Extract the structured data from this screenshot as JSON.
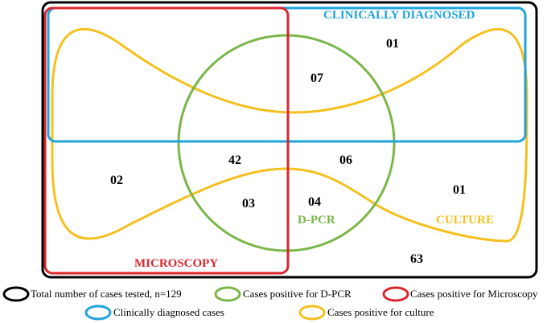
{
  "labels": {
    "clinically_diagnosed": "CLINICALLY DIAGNOSED",
    "dpcr": "D-PCR",
    "microscopy": "MICROSCOPY",
    "culture": "CULTURE"
  },
  "counts": {
    "clinical_only": "01",
    "clinical_dpcr_culture": "07",
    "micro_dpcr": "42",
    "dpcr_only": "06",
    "micro_only": "02",
    "micro_dpcr_culture": "03",
    "dpcr_culture": "04",
    "culture_only": "01",
    "none": "63"
  },
  "legend": {
    "total": "Total number of cases tested, n=129",
    "dpcr": "Cases positive for D-PCR",
    "microscopy": "Cases positive for Microscopy",
    "clinical": "Clinically diagnosed cases",
    "culture": "Cases positive for culture"
  },
  "colors": {
    "total": "#000000",
    "dpcr": "#7ab648",
    "microscopy": "#d9262c",
    "clinical": "#1fa3dd",
    "culture": "#f4c01e"
  }
}
